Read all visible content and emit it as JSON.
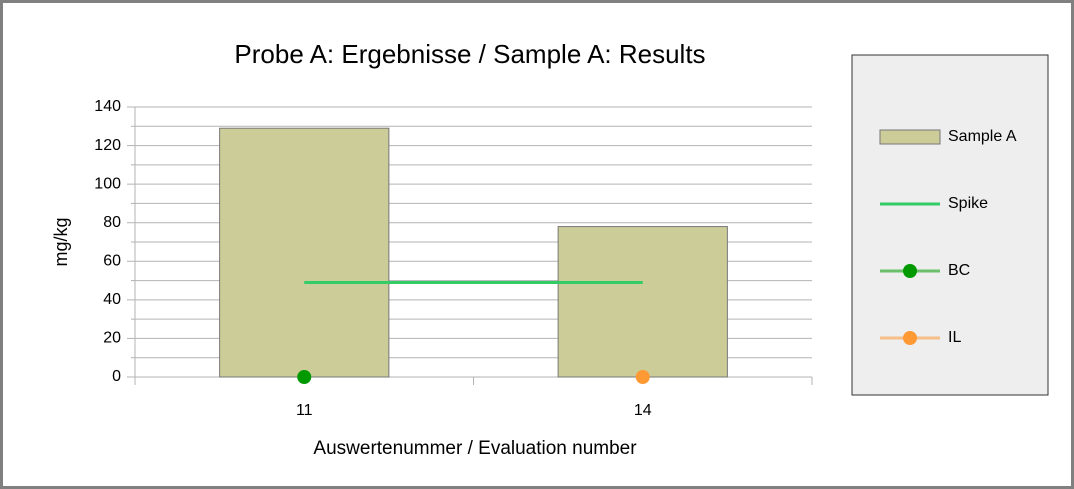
{
  "chart_data": {
    "type": "bar",
    "title": "Probe A: Ergebnisse / Sample A: Results",
    "x_label": "Auswertenummer / Evaluation number",
    "y_label": "mg/kg",
    "categories": [
      "11",
      "14"
    ],
    "series": [
      {
        "name": "Sample A",
        "kind": "bar",
        "color": "#cccc99",
        "values": [
          129,
          78
        ]
      },
      {
        "name": "Spike",
        "kind": "line",
        "color": "#33cc66",
        "values": [
          49,
          49
        ]
      },
      {
        "name": "BC",
        "kind": "point",
        "color": "#009900",
        "values": [
          0,
          null
        ]
      },
      {
        "name": "IL",
        "kind": "point",
        "color": "#ff9933",
        "values": [
          null,
          0
        ]
      }
    ],
    "ylim": [
      0,
      140
    ],
    "yticks": [
      0,
      20,
      40,
      60,
      80,
      100,
      120,
      140
    ],
    "yminorticks": [
      10,
      30,
      50,
      70,
      90,
      110,
      130
    ],
    "grid": true,
    "legend": "right"
  }
}
